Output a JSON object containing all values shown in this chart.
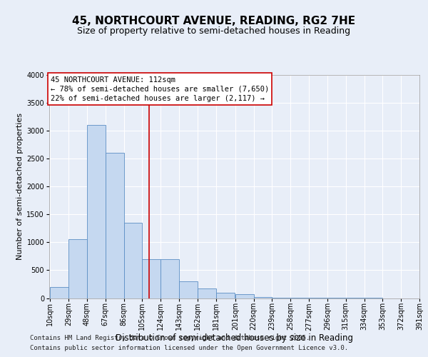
{
  "title1": "45, NORTHCOURT AVENUE, READING, RG2 7HE",
  "title2": "Size of property relative to semi-detached houses in Reading",
  "xlabel": "Distribution of semi-detached houses by size in Reading",
  "ylabel": "Number of semi-detached properties",
  "bin_labels": [
    "10sqm",
    "29sqm",
    "48sqm",
    "67sqm",
    "86sqm",
    "105sqm",
    "124sqm",
    "143sqm",
    "162sqm",
    "181sqm",
    "201sqm",
    "220sqm",
    "239sqm",
    "258sqm",
    "277sqm",
    "296sqm",
    "315sqm",
    "334sqm",
    "353sqm",
    "372sqm",
    "391sqm"
  ],
  "bin_edges": [
    10,
    29,
    48,
    67,
    86,
    105,
    124,
    143,
    162,
    181,
    201,
    220,
    239,
    258,
    277,
    296,
    315,
    334,
    353,
    372,
    391
  ],
  "bar_heights": [
    200,
    1050,
    3100,
    2600,
    1350,
    700,
    700,
    300,
    175,
    100,
    75,
    25,
    10,
    5,
    5,
    2,
    1,
    1,
    0,
    0
  ],
  "bar_color": "#c5d8f0",
  "bar_edge_color": "#5b8ec4",
  "vline_x": 112,
  "vline_color": "#cc0000",
  "ylim": [
    0,
    4000
  ],
  "yticks": [
    0,
    500,
    1000,
    1500,
    2000,
    2500,
    3000,
    3500,
    4000
  ],
  "annotation_title": "45 NORTHCOURT AVENUE: 112sqm",
  "annotation_line1": "← 78% of semi-detached houses are smaller (7,650)",
  "annotation_line2": "22% of semi-detached houses are larger (2,117) →",
  "annotation_box_color": "#cc0000",
  "footer1": "Contains HM Land Registry data © Crown copyright and database right 2025.",
  "footer2": "Contains public sector information licensed under the Open Government Licence v3.0.",
  "bg_color": "#e8eef8",
  "plot_bg_color": "#e8eef8",
  "grid_color": "#ffffff",
  "title1_fontsize": 11,
  "title2_fontsize": 9,
  "xlabel_fontsize": 8.5,
  "ylabel_fontsize": 8,
  "tick_fontsize": 7,
  "annotation_fontsize": 7.5,
  "footer_fontsize": 6.5
}
